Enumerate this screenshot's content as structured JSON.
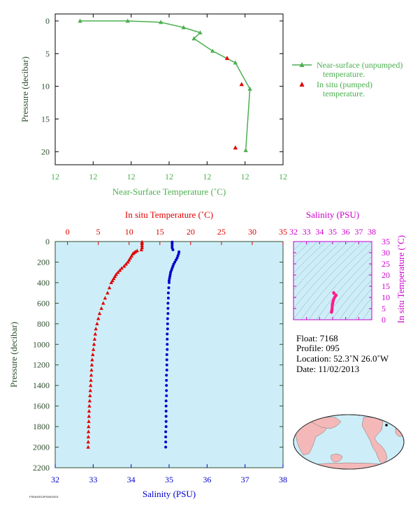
{
  "colors": {
    "green": "#4caf50",
    "red": "#e00000",
    "blue": "#0000cc",
    "magenta": "#cc00cc",
    "pink": "#ff1a8c",
    "axis_dark": "#2f4f2f",
    "plot_bg": "#cdeef8",
    "land": "#f4b8b8",
    "ocean": "#cdeef8"
  },
  "chart_data": [
    {
      "type": "line",
      "title": "",
      "xlabel": "Near-Surface Temperature (˚C)",
      "ylabel": "Pressure (decibar)",
      "x_tick_labels": [
        "12",
        "12",
        "12",
        "12",
        "12",
        "12",
        "12"
      ],
      "y_ticks": [
        0,
        5,
        10,
        15,
        20
      ],
      "ylim": [
        0,
        22
      ],
      "series": [
        {
          "name": "Near-surface (unpumped) temperature.",
          "marker": "triangle",
          "color": "#4caf50",
          "x": [
            11.62,
            11.85,
            12.01,
            12.12,
            12.2,
            12.17,
            12.26,
            12.37,
            12.44,
            12.42
          ],
          "y": [
            0,
            0,
            0.2,
            1.0,
            1.8,
            2.7,
            4.6,
            6.4,
            10.4,
            19.8
          ]
        },
        {
          "name": "In situ (pumped) temperature.",
          "marker": "triangle",
          "color": "#e00000",
          "x": [
            12.33,
            12.4,
            12.37
          ],
          "y": [
            5.7,
            9.7,
            19.4
          ]
        }
      ],
      "legend": {
        "unpumped_line1": "Near-surface (unpumped)",
        "unpumped_line2": "temperature.",
        "pumped_line1": "In situ (pumped)",
        "pumped_line2": "temperature."
      }
    },
    {
      "type": "scatter",
      "title": "",
      "xlabel_bottom": "Salinity (PSU)",
      "xlabel_top": "In situ Temperature (˚C)",
      "ylabel": "Pressure (decibar)",
      "salinity_ticks": [
        32,
        33,
        34,
        35,
        36,
        37,
        38
      ],
      "temperature_ticks": [
        0,
        5,
        10,
        15,
        20,
        25,
        30,
        35
      ],
      "pressure_ticks": [
        0,
        200,
        400,
        600,
        800,
        1000,
        1200,
        1400,
        1600,
        1800,
        2000,
        2200
      ],
      "ylim": [
        0,
        2200
      ],
      "temperature_profile": {
        "pressure": [
          5,
          20,
          40,
          60,
          80,
          90,
          100,
          110,
          120,
          140,
          160,
          180,
          200,
          220,
          240,
          260,
          280,
          300,
          320,
          340,
          360,
          380,
          400,
          450,
          500,
          550,
          600,
          650,
          700,
          750,
          800,
          850,
          900,
          950,
          1000,
          1050,
          1100,
          1150,
          1200,
          1250,
          1300,
          1350,
          1400,
          1450,
          1500,
          1550,
          1600,
          1650,
          1700,
          1750,
          1800,
          1850,
          1900,
          1950,
          2000
        ],
        "temperature": [
          12.1,
          12.1,
          12.1,
          12.1,
          12.0,
          11.3,
          11.0,
          10.8,
          10.6,
          10.4,
          10.2,
          10.0,
          9.8,
          9.5,
          9.2,
          8.8,
          8.5,
          8.2,
          7.9,
          7.7,
          7.5,
          7.3,
          7.1,
          6.8,
          6.5,
          6.1,
          5.8,
          5.5,
          5.2,
          5.0,
          4.8,
          4.6,
          4.5,
          4.4,
          4.3,
          4.2,
          4.1,
          4.0,
          3.95,
          3.9,
          3.85,
          3.8,
          3.75,
          3.7,
          3.65,
          3.6,
          3.55,
          3.5,
          3.48,
          3.45,
          3.42,
          3.4,
          3.38,
          3.36,
          3.35
        ]
      },
      "salinity_profile": {
        "pressure": [
          5,
          20,
          40,
          60,
          80,
          100,
          120,
          140,
          160,
          180,
          200,
          220,
          240,
          260,
          280,
          300,
          320,
          340,
          360,
          380,
          400,
          450,
          500,
          550,
          600,
          650,
          700,
          750,
          800,
          850,
          900,
          950,
          1000,
          1050,
          1100,
          1150,
          1200,
          1250,
          1300,
          1350,
          1400,
          1450,
          1500,
          1550,
          1600,
          1650,
          1700,
          1750,
          1800,
          1850,
          1900,
          1950,
          2000
        ],
        "salinity": [
          35.08,
          35.08,
          35.08,
          35.08,
          35.1,
          35.26,
          35.25,
          35.23,
          35.21,
          35.18,
          35.15,
          35.12,
          35.1,
          35.08,
          35.06,
          35.04,
          35.03,
          35.02,
          35.01,
          35.0,
          35.0,
          34.99,
          34.98,
          34.98,
          34.97,
          34.97,
          34.97,
          34.96,
          34.96,
          34.96,
          34.95,
          34.95,
          34.95,
          34.95,
          34.94,
          34.94,
          34.94,
          34.94,
          34.93,
          34.93,
          34.93,
          34.93,
          34.93,
          34.92,
          34.92,
          34.92,
          34.92,
          34.92,
          34.92,
          34.91,
          34.91,
          34.91,
          34.91
        ]
      }
    },
    {
      "type": "scatter",
      "title": "",
      "xlabel": "Salinity (PSU)",
      "ylabel": "In situ Temperature (˚C)",
      "x_ticks": [
        32,
        33,
        34,
        35,
        36,
        37,
        38
      ],
      "y_ticks": [
        0,
        5,
        10,
        15,
        20,
        25,
        30,
        35
      ],
      "xlim": [
        32,
        38
      ],
      "ylim": [
        0,
        35
      ],
      "salinity": [
        34.91,
        34.92,
        34.93,
        34.94,
        34.95,
        34.96,
        34.97,
        34.98,
        35.0,
        35.02,
        35.05,
        35.08,
        35.15,
        35.22,
        35.26,
        35.1,
        35.08
      ],
      "temperature": [
        3.35,
        3.6,
        3.9,
        4.2,
        4.6,
        5.2,
        6.1,
        6.8,
        7.3,
        7.9,
        8.5,
        9.2,
        10.0,
        10.6,
        11.0,
        11.8,
        12.1
      ]
    }
  ],
  "info": {
    "float": "Float:  7168",
    "profile": "Profile:  095",
    "location": "Location:  52.3˚N  26.0˚W",
    "date": "Date:  11/02/2013"
  },
  "footer_code": "FS0402013FS0402013"
}
